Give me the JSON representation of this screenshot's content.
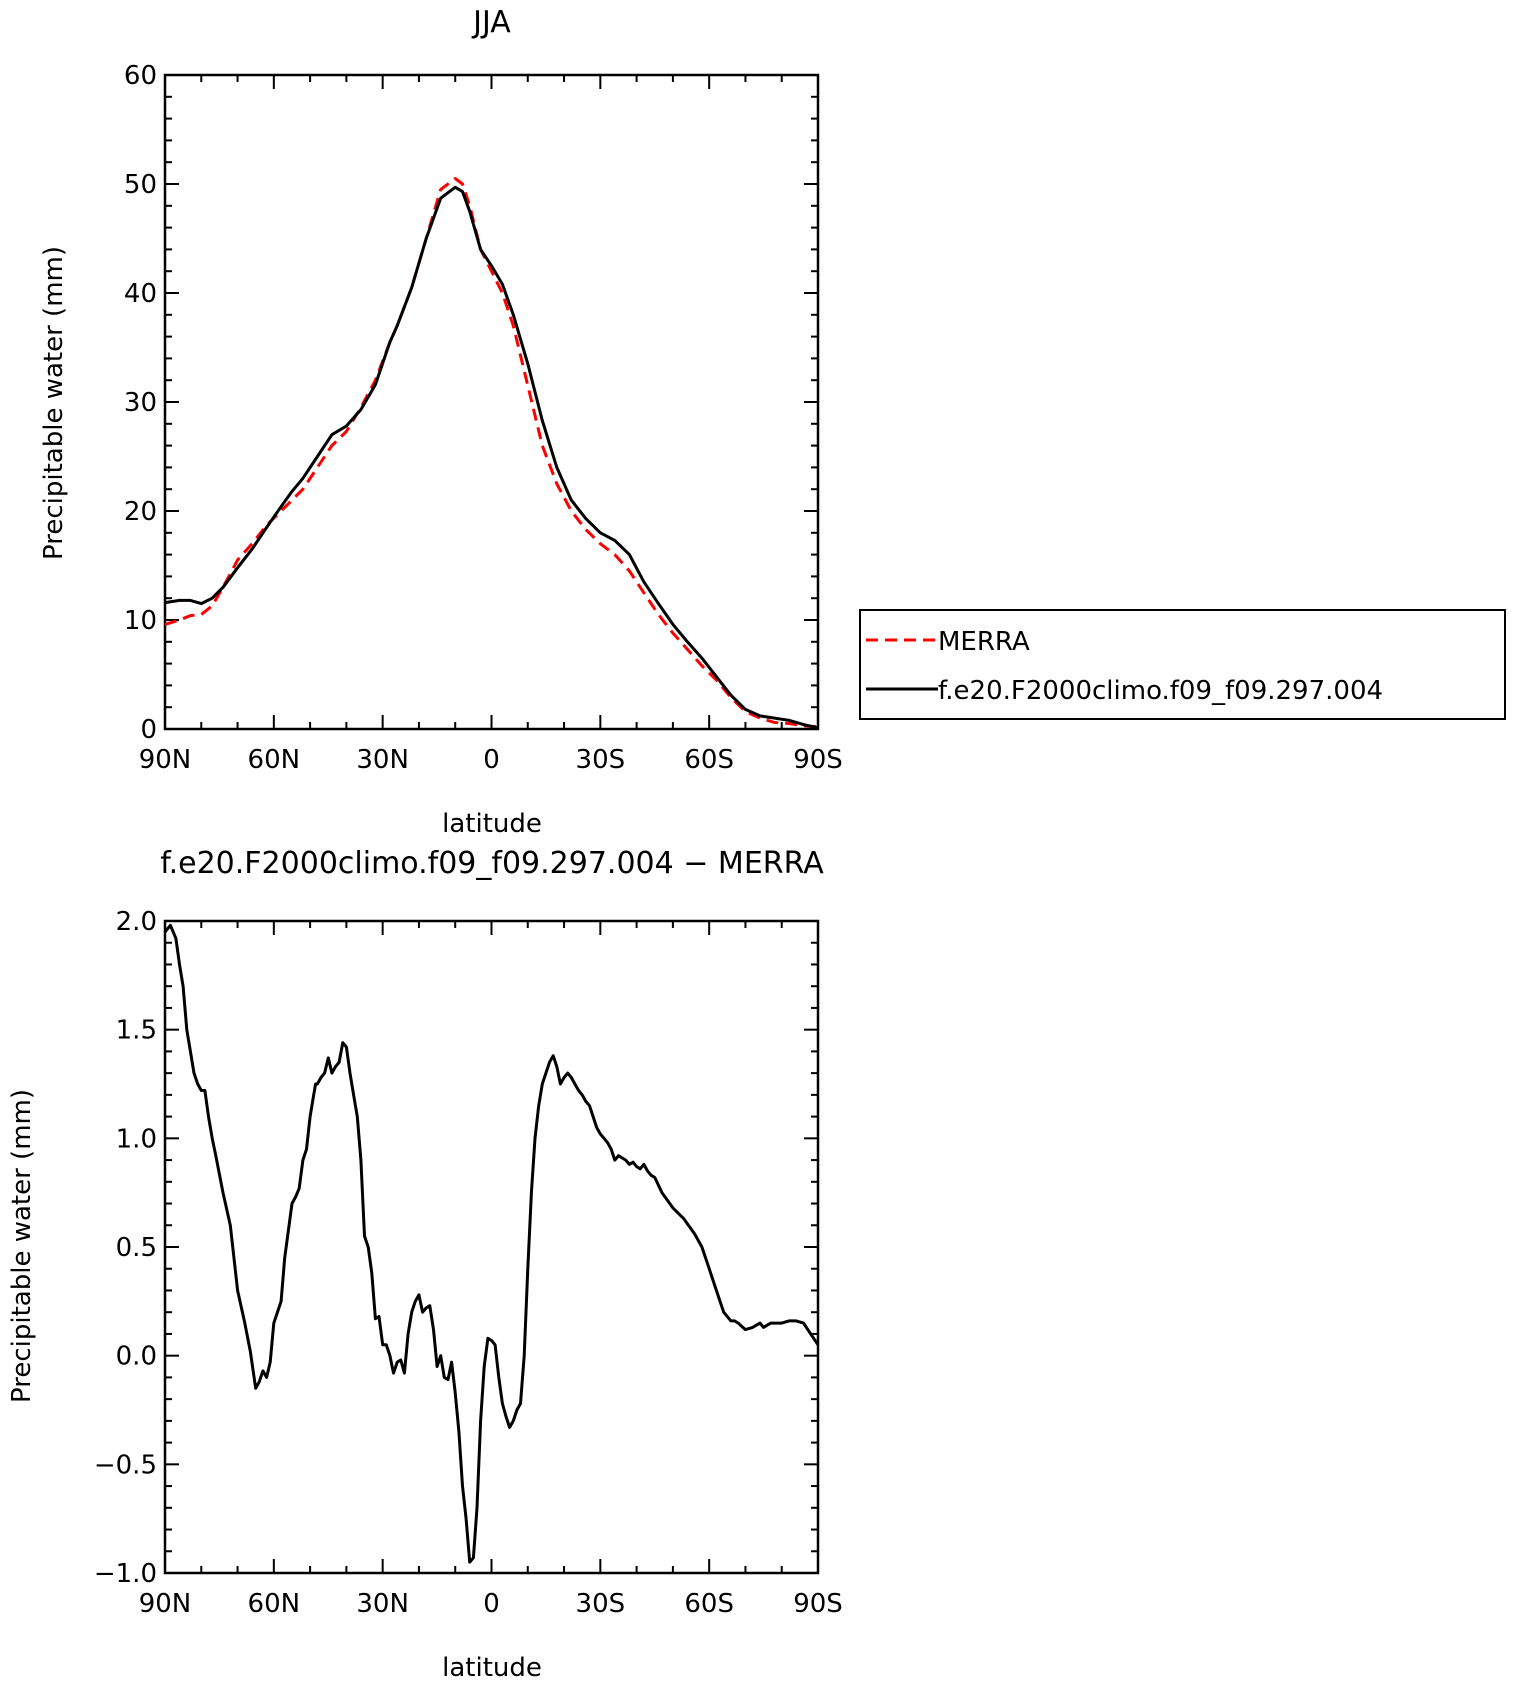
{
  "colors": {
    "merra": "#ff0000",
    "model": "#000000",
    "axis": "#000000"
  },
  "legend": {
    "placement": "right-of-top-panel",
    "entries": [
      {
        "label": "MERRA",
        "color": "#ff0000",
        "style": "dashed"
      },
      {
        "label": "f.e20.F2000climo.f09_f09.297.004",
        "color": "#000000",
        "style": "solid"
      }
    ]
  },
  "chart_data": [
    {
      "type": "line",
      "title": "JJA",
      "xlabel": "latitude",
      "ylabel": "Precipitable water (mm)",
      "xlim": [
        90,
        -90
      ],
      "ylim": [
        0,
        60
      ],
      "xticks": [
        {
          "value": 90,
          "label": "90N"
        },
        {
          "value": 60,
          "label": "60N"
        },
        {
          "value": 30,
          "label": "30N"
        },
        {
          "value": 0,
          "label": "0"
        },
        {
          "value": -30,
          "label": "30S"
        },
        {
          "value": -60,
          "label": "60S"
        },
        {
          "value": -90,
          "label": "90S"
        }
      ],
      "yticks": [
        {
          "value": 0,
          "label": "0"
        },
        {
          "value": 10,
          "label": "10"
        },
        {
          "value": 20,
          "label": "20"
        },
        {
          "value": 30,
          "label": "30"
        },
        {
          "value": 40,
          "label": "40"
        },
        {
          "value": 50,
          "label": "50"
        },
        {
          "value": 60,
          "label": "60"
        }
      ],
      "series": [
        {
          "name": "MERRA",
          "color": "#ff0000",
          "style": "dashed",
          "x": [
            90,
            86,
            83,
            80,
            77,
            74,
            70,
            66,
            62,
            58,
            55,
            52,
            48,
            44,
            40,
            36,
            32,
            28,
            26,
            22,
            18,
            14,
            10,
            8,
            6,
            3,
            0,
            -3,
            -6,
            -10,
            -14,
            -18,
            -22,
            -26,
            -30,
            -34,
            -38,
            -42,
            -46,
            -50,
            -54,
            -58,
            -62,
            -66,
            -70,
            -74,
            -78,
            -82,
            -86,
            -90
          ],
          "y": [
            9.6,
            10.0,
            10.4,
            10.5,
            11.3,
            13.0,
            15.5,
            17.0,
            18.7,
            20.0,
            21.0,
            22.0,
            24.0,
            26.0,
            27.3,
            29.5,
            32.0,
            35.5,
            37.0,
            40.5,
            45.0,
            49.5,
            50.5,
            50.0,
            48.0,
            44.0,
            42.0,
            40.0,
            37.0,
            31.5,
            26.0,
            22.5,
            20.0,
            18.3,
            17.0,
            16.0,
            14.5,
            12.5,
            10.5,
            8.8,
            7.3,
            5.8,
            4.5,
            2.9,
            1.6,
            1.0,
            0.6,
            0.5,
            0.3,
            0.2
          ]
        },
        {
          "name": "f.e20.F2000climo.f09_f09.297.004",
          "color": "#000000",
          "style": "solid",
          "x": [
            90,
            86,
            83,
            80,
            77,
            74,
            70,
            66,
            62,
            58,
            55,
            52,
            48,
            44,
            40,
            36,
            32,
            28,
            26,
            22,
            18,
            14,
            10,
            8,
            6,
            3,
            0,
            -3,
            -6,
            -10,
            -14,
            -18,
            -22,
            -26,
            -30,
            -34,
            -38,
            -42,
            -46,
            -50,
            -54,
            -58,
            -62,
            -66,
            -70,
            -74,
            -78,
            -82,
            -86,
            -90
          ],
          "y": [
            11.6,
            11.8,
            11.8,
            11.5,
            12.0,
            13.0,
            14.8,
            16.5,
            18.5,
            20.4,
            21.8,
            23.0,
            25.0,
            27.0,
            27.8,
            29.3,
            31.6,
            35.5,
            37.0,
            40.5,
            45.0,
            48.7,
            49.7,
            49.3,
            47.5,
            44.0,
            42.5,
            40.8,
            38.0,
            33.5,
            28.3,
            24.0,
            21.0,
            19.3,
            18.0,
            17.3,
            16.0,
            13.5,
            11.5,
            9.6,
            8.0,
            6.5,
            4.8,
            3.1,
            1.8,
            1.2,
            1.0,
            0.8,
            0.4,
            0.1
          ]
        }
      ]
    },
    {
      "type": "line",
      "title": "f.e20.F2000climo.f09_f09.297.004 − MERRA",
      "xlabel": "latitude",
      "ylabel": "Precipitable water (mm)",
      "xlim": [
        90,
        -90
      ],
      "ylim": [
        -1.0,
        2.0
      ],
      "xticks": [
        {
          "value": 90,
          "label": "90N"
        },
        {
          "value": 60,
          "label": "60N"
        },
        {
          "value": 30,
          "label": "30N"
        },
        {
          "value": 0,
          "label": "0"
        },
        {
          "value": -30,
          "label": "30S"
        },
        {
          "value": -60,
          "label": "60S"
        },
        {
          "value": -90,
          "label": "90S"
        }
      ],
      "yticks": [
        {
          "value": -1.0,
          "label": "−1.0"
        },
        {
          "value": -0.5,
          "label": "−0.5"
        },
        {
          "value": 0.0,
          "label": "0.0"
        },
        {
          "value": 0.5,
          "label": "0.5"
        },
        {
          "value": 1.0,
          "label": "1.0"
        },
        {
          "value": 1.5,
          "label": "1.5"
        },
        {
          "value": 2.0,
          "label": "2.0"
        }
      ],
      "series": [
        {
          "name": "f.e20.F2000climo.f09_f09.297.004 − MERRA",
          "color": "#000000",
          "style": "solid",
          "x": [
            90,
            88.5,
            87,
            86,
            85,
            84,
            83,
            82,
            81,
            80,
            79,
            78,
            77,
            76,
            74,
            72,
            70,
            68,
            66.5,
            65,
            64,
            63,
            62,
            61,
            60,
            58,
            57,
            55,
            54,
            53,
            52,
            51,
            50,
            49,
            48.5,
            48,
            47,
            46,
            45,
            44,
            43,
            42,
            41,
            40,
            39,
            38,
            37,
            36,
            35,
            34,
            33,
            32,
            31,
            30,
            29,
            28,
            27,
            26,
            25,
            24,
            23,
            22,
            21,
            20,
            19,
            18,
            17,
            16,
            15,
            14,
            13,
            12,
            11,
            10,
            9,
            8,
            7,
            6,
            5,
            4,
            3,
            2,
            1,
            0,
            -1,
            -2,
            -3,
            -4,
            -5,
            -6,
            -7,
            -8,
            -9,
            -10,
            -11,
            -12,
            -13,
            -14,
            -15,
            -16,
            -17,
            -18,
            -19,
            -20,
            -21,
            -22,
            -23,
            -24,
            -25,
            -26,
            -27,
            -28,
            -29,
            -30,
            -31,
            -32,
            -33,
            -34,
            -35,
            -36,
            -37,
            -38,
            -39,
            -40,
            -41,
            -42,
            -43,
            -44,
            -45,
            -47,
            -50,
            -53,
            -56,
            -58,
            -60,
            -62,
            -64,
            -66,
            -67,
            -68,
            -70,
            -72,
            -73,
            -74,
            -75,
            -76,
            -77,
            -78,
            -80,
            -82,
            -84,
            -86,
            -88,
            -90
          ],
          "y": [
            1.95,
            1.98,
            1.92,
            1.8,
            1.7,
            1.5,
            1.4,
            1.3,
            1.25,
            1.22,
            1.22,
            1.1,
            1.0,
            0.92,
            0.75,
            0.6,
            0.3,
            0.15,
            0.02,
            -0.15,
            -0.12,
            -0.07,
            -0.1,
            -0.03,
            0.15,
            0.25,
            0.45,
            0.7,
            0.73,
            0.77,
            0.9,
            0.95,
            1.1,
            1.2,
            1.25,
            1.25,
            1.28,
            1.3,
            1.37,
            1.3,
            1.33,
            1.35,
            1.44,
            1.42,
            1.3,
            1.2,
            1.1,
            0.9,
            0.55,
            0.5,
            0.38,
            0.17,
            0.18,
            0.05,
            0.05,
            0.0,
            -0.08,
            -0.03,
            -0.02,
            -0.08,
            0.1,
            0.2,
            0.25,
            0.28,
            0.2,
            0.22,
            0.23,
            0.12,
            -0.05,
            0.0,
            -0.1,
            -0.11,
            -0.03,
            -0.17,
            -0.35,
            -0.6,
            -0.75,
            -0.95,
            -0.93,
            -0.7,
            -0.3,
            -0.05,
            0.08,
            0.07,
            0.05,
            -0.1,
            -0.22,
            -0.28,
            -0.33,
            -0.3,
            -0.25,
            -0.22,
            0.0,
            0.4,
            0.75,
            1.0,
            1.15,
            1.25,
            1.3,
            1.35,
            1.38,
            1.33,
            1.25,
            1.28,
            1.3,
            1.28,
            1.25,
            1.22,
            1.2,
            1.17,
            1.15,
            1.1,
            1.05,
            1.02,
            1.0,
            0.98,
            0.95,
            0.9,
            0.92,
            0.91,
            0.9,
            0.88,
            0.89,
            0.87,
            0.86,
            0.88,
            0.85,
            0.83,
            0.82,
            0.75,
            0.68,
            0.63,
            0.56,
            0.5,
            0.4,
            0.3,
            0.2,
            0.16,
            0.16,
            0.15,
            0.12,
            0.13,
            0.14,
            0.15,
            0.13,
            0.14,
            0.15,
            0.15,
            0.15,
            0.16,
            0.16,
            0.15,
            0.1,
            0.05
          ]
        }
      ]
    }
  ]
}
